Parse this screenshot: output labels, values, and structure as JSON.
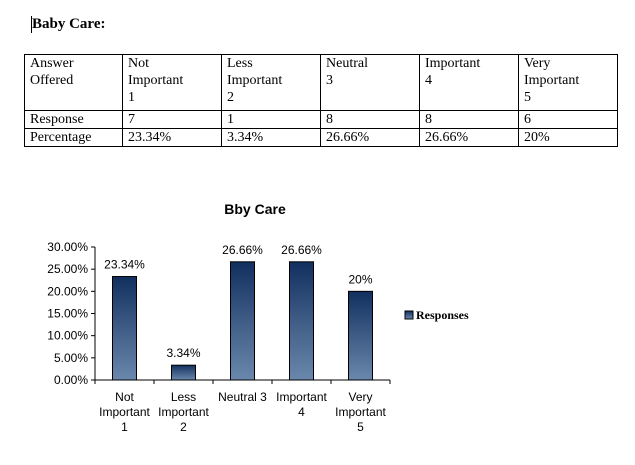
{
  "heading": "Baby Care:",
  "table": {
    "header": [
      "Answer Offered",
      "Not Important 1",
      "Less Important 2",
      "Neutral 3",
      "Important 4",
      "Very Important 5"
    ],
    "header_lines": [
      [
        "Answer",
        "Offered"
      ],
      [
        "Not",
        "Important",
        "1"
      ],
      [
        "Less",
        "Important",
        "2"
      ],
      [
        "Neutral",
        "3"
      ],
      [
        "Important",
        "4"
      ],
      [
        "Very",
        "Important",
        "5"
      ]
    ],
    "rows": [
      [
        "Response",
        "7",
        "1",
        "8",
        "8",
        "6"
      ],
      [
        "Percentage",
        "23.34%",
        "3.34%",
        "26.66%",
        "26.66%",
        "20%"
      ]
    ]
  },
  "chart_data": {
    "type": "bar",
    "title": "Bby Care",
    "categories": [
      [
        "Not",
        "Important",
        "1"
      ],
      [
        "Less",
        "Important",
        "2"
      ],
      [
        "Neutral 3"
      ],
      [
        "Important",
        "4"
      ],
      [
        "Very",
        "Important",
        "5"
      ]
    ],
    "values": [
      23.34,
      3.34,
      26.66,
      26.66,
      20
    ],
    "data_labels": [
      "23.34%",
      "3.34%",
      "26.66%",
      "26.66%",
      "20%"
    ],
    "yticks": [
      "0.00%",
      "5.00%",
      "10.00%",
      "15.00%",
      "20.00%",
      "25.00%",
      "30.00%"
    ],
    "ylim": [
      0,
      30
    ],
    "legend": "Responses",
    "legend_position": "right",
    "bar_color_top": "#12305f",
    "bar_color_bottom": "#6a88ac"
  }
}
